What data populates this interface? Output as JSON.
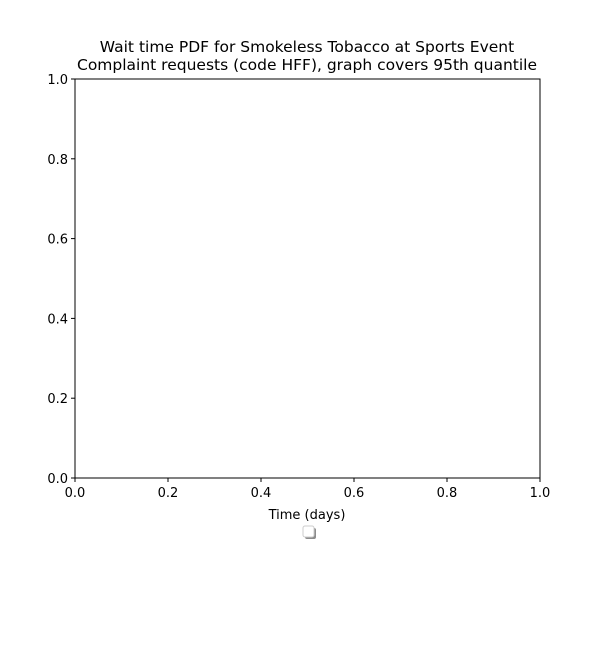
{
  "chart_data": {
    "type": "line",
    "title_lines": [
      "Wait time PDF for Smokeless Tobacco at Sports Event",
      "Complaint  requests (code HFF), graph covers 95th quantile"
    ],
    "xlabel": "Time (days)",
    "ylabel": "",
    "xlim": [
      0.0,
      1.0
    ],
    "ylim": [
      0.0,
      1.0
    ],
    "x_ticks": [
      "0.0",
      "0.2",
      "0.4",
      "0.6",
      "0.8",
      "1.0"
    ],
    "y_ticks": [
      "0.0",
      "0.2",
      "0.4",
      "0.6",
      "0.8",
      "1.0"
    ],
    "series": [],
    "grid": false,
    "legend": {
      "position": "below-axis",
      "entries": []
    }
  }
}
